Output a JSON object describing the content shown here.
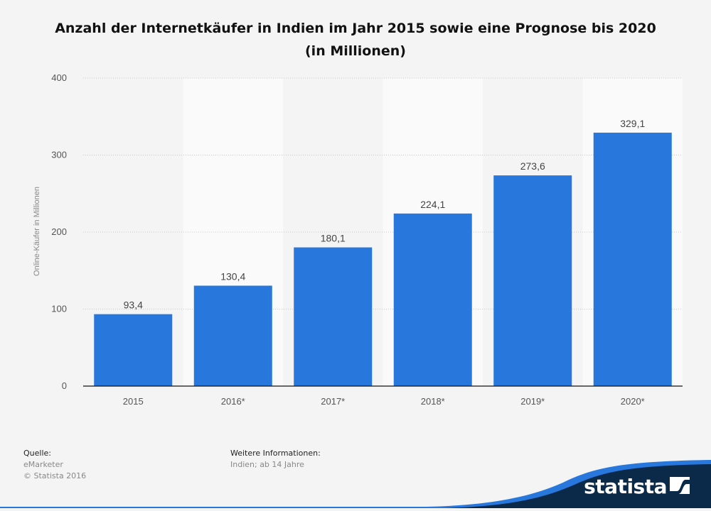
{
  "chart_data": {
    "type": "bar",
    "title": "Anzahl der Internetkäufer in Indien im Jahr 2015 sowie eine Prognose bis 2020 (in Millionen)",
    "xlabel": "",
    "ylabel": "Online-Käufer in Millionen",
    "categories": [
      "2015",
      "2016*",
      "2017*",
      "2018*",
      "2019*",
      "2020*"
    ],
    "values": [
      93.4,
      130.4,
      180.1,
      224.1,
      273.6,
      329.1
    ],
    "value_labels": [
      "93,4",
      "130,4",
      "180,1",
      "224,1",
      "273,6",
      "329,1"
    ],
    "ylim": [
      0,
      400
    ],
    "yticks": [
      0,
      100,
      200,
      300,
      400
    ],
    "bar_color": "#2877dc",
    "grid": true
  },
  "footer": {
    "source_heading": "Quelle:",
    "source_lines": [
      "eMarketer",
      "© Statista 2016"
    ],
    "info_heading": "Weitere Informationen:",
    "info_lines": [
      "Indien; ab 14 Jahre"
    ]
  },
  "brand": {
    "logo_text": "statista",
    "colors": {
      "navy": "#0b2a4a",
      "accent": "#2877dc"
    }
  }
}
